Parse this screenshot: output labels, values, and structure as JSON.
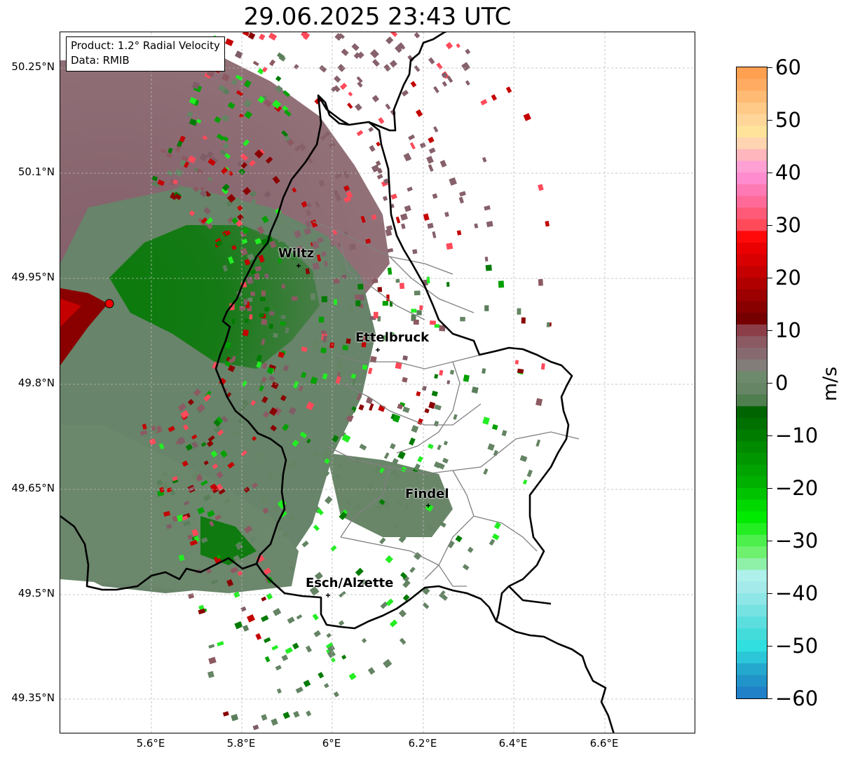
{
  "title": "29.06.2025 23:43 UTC",
  "info_box": {
    "product_line": "Product: 1.2° Radial Velocity",
    "data_line": "Data: RMIB"
  },
  "map": {
    "lat_ticks": [
      "50.25°N",
      "50.1°N",
      "49.95°N",
      "49.8°N",
      "49.65°N",
      "49.5°N",
      "49.35°N"
    ],
    "lon_ticks": [
      "5.6°E",
      "5.8°E",
      "6°E",
      "6.2°E",
      "6.4°E",
      "6.6°E"
    ],
    "cities": [
      {
        "name": "Wiltz"
      },
      {
        "name": "Ettelbruck"
      },
      {
        "name": "Findel"
      },
      {
        "name": "Esch/Alzette"
      }
    ],
    "radar_site_color": "#ee0000",
    "border_color": "#000000",
    "canton_color": "#808080"
  },
  "colorbar": {
    "label": "m/s",
    "ticks": [
      "60",
      "50",
      "40",
      "30",
      "20",
      "10",
      "0",
      "−10",
      "−20",
      "−30",
      "−40",
      "−50",
      "−60"
    ],
    "range": [
      -60,
      60
    ],
    "colors": {
      "strong_outbound": "#ff9f50",
      "outbound_high": "#ffe39a",
      "outbound_pink": "#ff8ccf",
      "outbound_red": "#ff4a5a",
      "outbound_darkred": "#d00000",
      "near_zero_outbound": "#8c5a62",
      "near_zero_inbound": "#658564",
      "inbound_green": "#007a00",
      "inbound_brightgreen": "#22ee22",
      "inbound_cyan": "#30dfdf",
      "strong_inbound": "#2080c8"
    }
  }
}
